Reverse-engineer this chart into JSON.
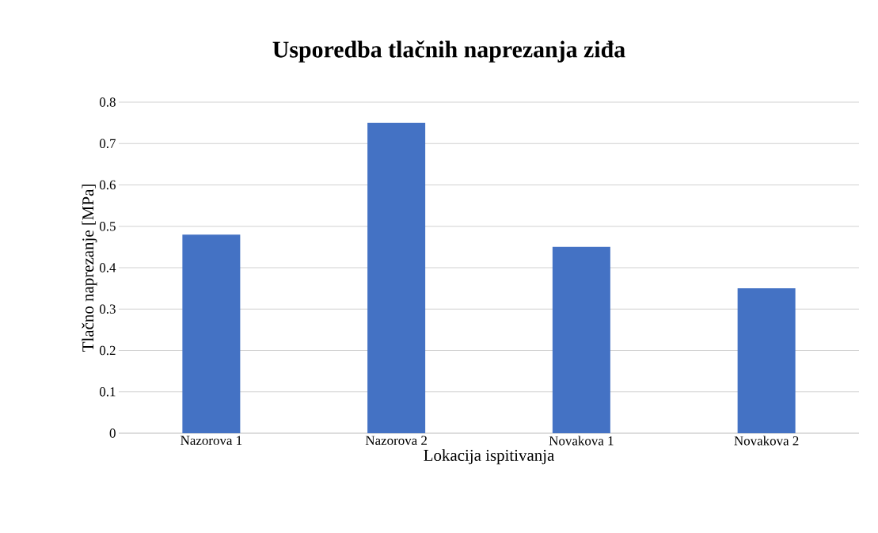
{
  "chart_data": {
    "type": "bar",
    "title": "Usporedba tlačnih naprezanja ziđa",
    "xlabel": "Lokacija ispitivanja",
    "ylabel": "Tlačno naprezanje [MPa]",
    "categories": [
      "Nazorova 1",
      "Nazorova 2",
      "Novakova 1",
      "Novakova 2"
    ],
    "values": [
      0.48,
      0.75,
      0.45,
      0.35
    ],
    "color": "#4472c4",
    "ylim": [
      0,
      0.8
    ],
    "yticks": [
      0,
      0.1,
      0.2,
      0.3,
      0.4,
      0.5,
      0.6,
      0.7,
      0.8
    ],
    "grid": "y"
  }
}
